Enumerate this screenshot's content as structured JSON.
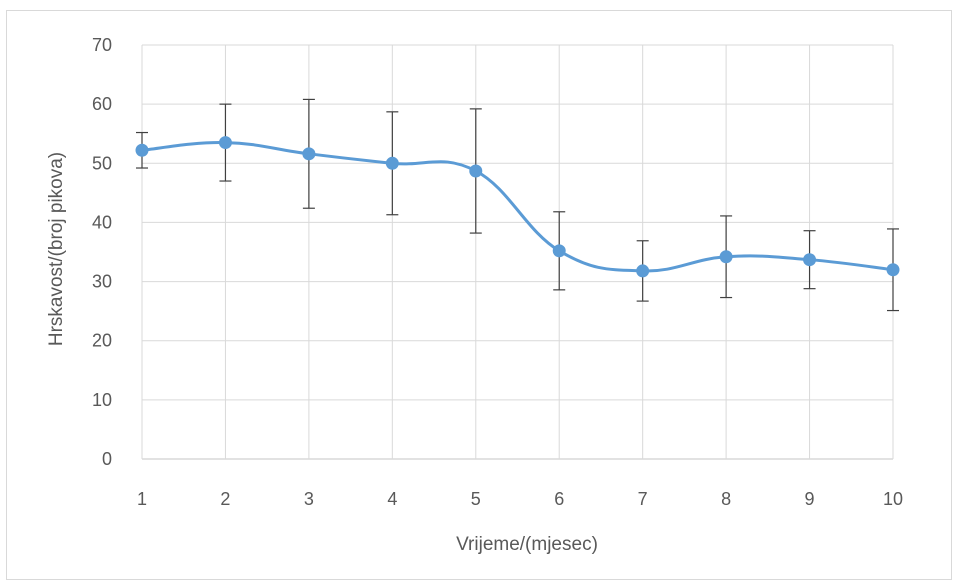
{
  "chart_data": {
    "type": "line",
    "xlabel": "Vrijeme/(mjesec)",
    "ylabel": "Hrskavost/(broj pikova)",
    "x": [
      1,
      2,
      3,
      4,
      5,
      6,
      7,
      8,
      9,
      10
    ],
    "ylim": [
      0,
      70
    ],
    "yticks": [
      0,
      10,
      20,
      30,
      40,
      50,
      60,
      70
    ],
    "grid": true,
    "smooth": true,
    "series": [
      {
        "values": [
          52.2,
          53.5,
          51.6,
          50.0,
          48.7,
          35.2,
          31.8,
          34.2,
          33.7,
          32.0
        ],
        "error": [
          3.0,
          6.5,
          9.2,
          8.7,
          10.5,
          6.6,
          5.1,
          6.9,
          4.9,
          6.9
        ],
        "color": "#5b9bd5"
      }
    ],
    "gridline_color": "#d9d9d9",
    "errorbar_color": "#404040",
    "tick_color": "#595959"
  }
}
